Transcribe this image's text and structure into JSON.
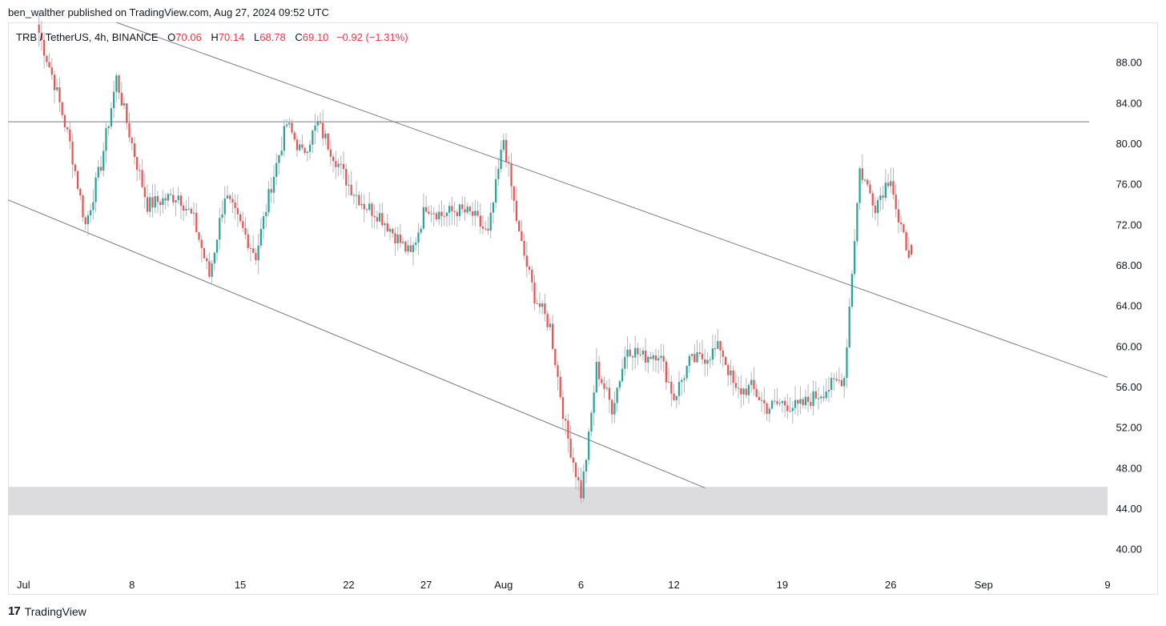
{
  "publisher_line": "ben_walther published on TradingView.com, Aug 27, 2024 09:52 UTC",
  "brand": {
    "logo_icon": "tradingview-logo-icon",
    "name": "TradingView"
  },
  "legend": {
    "symbol": "TRB / TetherUS, 4h, BINANCE",
    "o_label": "O",
    "o_value": "70.06",
    "h_label": "H",
    "h_value": "70.14",
    "l_label": "L",
    "l_value": "68.78",
    "c_label": "C",
    "c_value": "69.10",
    "change": "−0.92 (−1.31%)"
  },
  "colors": {
    "up": "#26a69a",
    "down": "#ef5350",
    "wick": "#b2b5be",
    "line": "#787b86",
    "zone": "#dcdcdf",
    "text": "#131722"
  },
  "chart_data": {
    "type": "candlestick",
    "symbol": "TRB / TetherUS",
    "interval": "4h",
    "exchange": "BINANCE",
    "ylim": [
      38.0,
      92.0
    ],
    "xlim": [
      "2024-06-30",
      "2024-09-09"
    ],
    "y_ticks": [
      "88.00",
      "84.00",
      "80.00",
      "76.00",
      "72.00",
      "68.00",
      "64.00",
      "60.00",
      "56.00",
      "52.00",
      "48.00",
      "44.00",
      "40.00"
    ],
    "x_ticks": [
      {
        "label": "Jul",
        "date": "2024-07-01"
      },
      {
        "label": "8",
        "date": "2024-07-08"
      },
      {
        "label": "15",
        "date": "2024-07-15"
      },
      {
        "label": "22",
        "date": "2024-07-22"
      },
      {
        "label": "27",
        "date": "2024-07-27"
      },
      {
        "label": "Aug",
        "date": "2024-08-01"
      },
      {
        "label": "6",
        "date": "2024-08-06"
      },
      {
        "label": "12",
        "date": "2024-08-12"
      },
      {
        "label": "19",
        "date": "2024-08-19"
      },
      {
        "label": "26",
        "date": "2024-08-26"
      },
      {
        "label": "Sep",
        "date": "2024-09-01"
      },
      {
        "label": "9",
        "date": "2024-09-09"
      }
    ],
    "close_path": [
      [
        "2024-07-02",
        91.0
      ],
      [
        "2024-07-03",
        86.0
      ],
      [
        "2024-07-04",
        80.0
      ],
      [
        "2024-07-05",
        72.0
      ],
      [
        "2024-07-06",
        78.0
      ],
      [
        "2024-07-07",
        86.5
      ],
      [
        "2024-07-08",
        80.0
      ],
      [
        "2024-07-09",
        74.0
      ],
      [
        "2024-07-10",
        74.5
      ],
      [
        "2024-07-11",
        75.0
      ],
      [
        "2024-07-12",
        72.5
      ],
      [
        "2024-07-13",
        67.0
      ],
      [
        "2024-07-14",
        75.0
      ],
      [
        "2024-07-15",
        72.0
      ],
      [
        "2024-07-16",
        69.0
      ],
      [
        "2024-07-17",
        76.0
      ],
      [
        "2024-07-18",
        82.0
      ],
      [
        "2024-07-19",
        79.0
      ],
      [
        "2024-07-20",
        82.0
      ],
      [
        "2024-07-21",
        79.0
      ],
      [
        "2024-07-22",
        76.0
      ],
      [
        "2024-07-23",
        74.0
      ],
      [
        "2024-07-24",
        73.0
      ],
      [
        "2024-07-25",
        71.0
      ],
      [
        "2024-07-26",
        69.0
      ],
      [
        "2024-07-27",
        74.0
      ],
      [
        "2024-07-28",
        73.0
      ],
      [
        "2024-07-29",
        73.5
      ],
      [
        "2024-07-30",
        73.0
      ],
      [
        "2024-07-31",
        71.0
      ],
      [
        "2024-08-01",
        80.5
      ],
      [
        "2024-08-02",
        71.0
      ],
      [
        "2024-08-03",
        65.0
      ],
      [
        "2024-08-04",
        62.0
      ],
      [
        "2024-08-05",
        52.0
      ],
      [
        "2024-08-06",
        45.5
      ],
      [
        "2024-08-06T12",
        51.0
      ],
      [
        "2024-08-07",
        58.0
      ],
      [
        "2024-08-08",
        54.0
      ],
      [
        "2024-08-09",
        60.0
      ],
      [
        "2024-08-10",
        59.0
      ],
      [
        "2024-08-11",
        59.5
      ],
      [
        "2024-08-12",
        55.0
      ],
      [
        "2024-08-13",
        58.5
      ],
      [
        "2024-08-14",
        59.0
      ],
      [
        "2024-08-15",
        60.0
      ],
      [
        "2024-08-16",
        55.5
      ],
      [
        "2024-08-17",
        56.0
      ],
      [
        "2024-08-18",
        54.0
      ],
      [
        "2024-08-19",
        54.5
      ],
      [
        "2024-08-20",
        54.0
      ],
      [
        "2024-08-21",
        55.0
      ],
      [
        "2024-08-22",
        56.0
      ],
      [
        "2024-08-23",
        57.0
      ],
      [
        "2024-08-23T12",
        67.5
      ],
      [
        "2024-08-24",
        77.5
      ],
      [
        "2024-08-25",
        74.0
      ],
      [
        "2024-08-26",
        77.0
      ],
      [
        "2024-08-26T12",
        72.0
      ],
      [
        "2024-08-27",
        70.06
      ],
      [
        "2024-08-27T08",
        69.1
      ]
    ],
    "lines": [
      {
        "name": "horizontal-resistance",
        "type": "horizontal",
        "y": 82.2
      },
      {
        "name": "upper-trendline",
        "type": "segment",
        "from": [
          "2024-07-07",
          92.0
        ],
        "to": [
          "2024-09-09",
          57.0
        ]
      },
      {
        "name": "lower-trendline",
        "type": "segment",
        "from": [
          "2024-06-30",
          74.5
        ],
        "to": [
          "2024-08-14",
          46.1
        ]
      }
    ],
    "zones": [
      {
        "name": "support-zone",
        "y1": 43.4,
        "y2": 46.2,
        "x_from": "2024-06-30",
        "x_to": "2024-09-09"
      }
    ],
    "last_candle": {
      "open": 70.06,
      "high": 70.14,
      "low": 68.78,
      "close": 69.1
    }
  }
}
